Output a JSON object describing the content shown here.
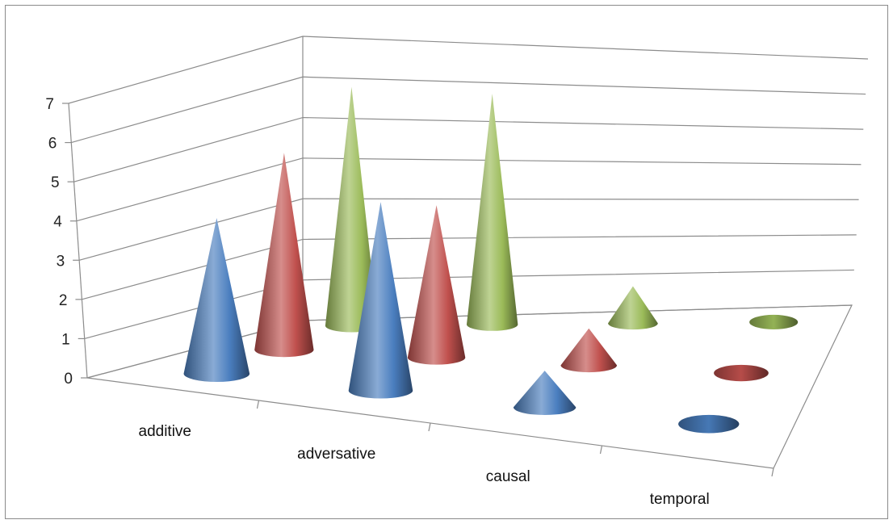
{
  "chart_data": {
    "type": "bar",
    "style": "3d-cone",
    "categories": [
      "additive",
      "adversative",
      "causal",
      "temporal"
    ],
    "series": [
      {
        "values": [
          4,
          5,
          1,
          0
        ],
        "color": "#4a7ebf"
      },
      {
        "values": [
          5,
          4,
          1,
          0
        ],
        "color": "#c0504d"
      },
      {
        "values": [
          6,
          6,
          1,
          0
        ],
        "color": "#9bbb59"
      }
    ],
    "yticks": [
      "0",
      "1",
      "2",
      "3",
      "4",
      "5",
      "6",
      "7"
    ],
    "ylim": [
      0,
      7
    ],
    "grid": true,
    "legend": "none"
  }
}
